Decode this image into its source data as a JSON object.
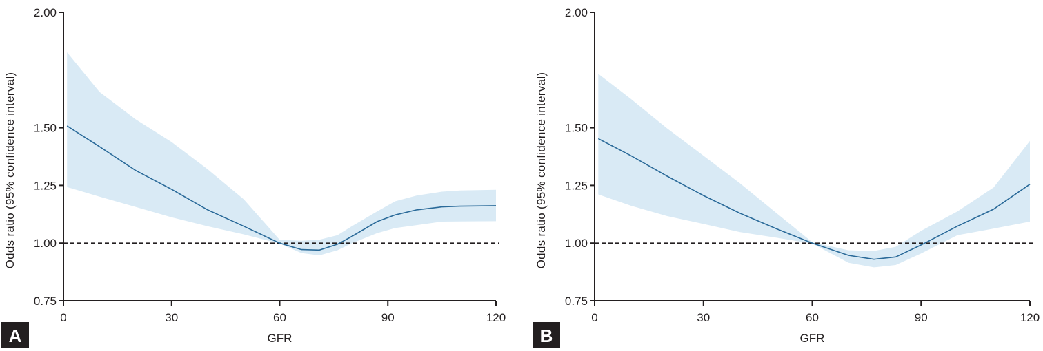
{
  "style": {
    "band_color": "#d9eaf5",
    "line_color": "#2a6a99",
    "reference_color": "#231f20"
  },
  "chart_data": [
    {
      "type": "area",
      "panel_label": "A",
      "xlabel": "GFR",
      "ylabel": "Odds ratio (95% confidence interval)",
      "xlim": [
        0,
        120
      ],
      "ylim": [
        0.75,
        2.0
      ],
      "xticks": [
        "0",
        "30",
        "60",
        "90",
        "120"
      ],
      "yticks": [
        "0.75",
        "1.00",
        "1.25",
        "1.50",
        "2.00"
      ],
      "reference_line": 1.0,
      "grid": false,
      "x": [
        1,
        10,
        20,
        30,
        40,
        50,
        60,
        66,
        71,
        76,
        80,
        87,
        92,
        98,
        105,
        110,
        120
      ],
      "estimate": [
        1.508,
        1.418,
        1.315,
        1.233,
        1.144,
        1.073,
        1.0,
        0.972,
        0.97,
        0.995,
        1.029,
        1.093,
        1.122,
        1.144,
        1.157,
        1.16,
        1.162
      ],
      "upper": [
        1.827,
        1.655,
        1.537,
        1.438,
        1.32,
        1.19,
        1.014,
        1.01,
        1.015,
        1.034,
        1.073,
        1.137,
        1.181,
        1.206,
        1.223,
        1.228,
        1.231
      ],
      "lower": [
        1.243,
        1.201,
        1.157,
        1.112,
        1.073,
        1.038,
        0.998,
        0.957,
        0.947,
        0.969,
        0.999,
        1.043,
        1.065,
        1.078,
        1.093,
        1.094,
        1.095
      ]
    },
    {
      "type": "area",
      "panel_label": "B",
      "xlabel": "GFR",
      "ylabel": "Odds ratio (95% confidence interval)",
      "xlim": [
        0,
        120
      ],
      "ylim": [
        0.75,
        2.0
      ],
      "xticks": [
        "0",
        "30",
        "60",
        "90",
        "120"
      ],
      "yticks": [
        "0.75",
        "1.00",
        "1.25",
        "1.50",
        "2.00"
      ],
      "reference_line": 1.0,
      "grid": false,
      "x": [
        1,
        10,
        20,
        30,
        40,
        50,
        60,
        70,
        77,
        83,
        90,
        100,
        110,
        120
      ],
      "estimate": [
        1.453,
        1.379,
        1.29,
        1.206,
        1.13,
        1.063,
        1.0,
        0.947,
        0.93,
        0.94,
        0.992,
        1.073,
        1.147,
        1.255
      ],
      "upper": [
        1.734,
        1.625,
        1.497,
        1.379,
        1.26,
        1.132,
        1.004,
        0.969,
        0.966,
        0.984,
        1.053,
        1.137,
        1.241,
        1.443
      ],
      "lower": [
        1.211,
        1.162,
        1.117,
        1.083,
        1.048,
        1.024,
        0.998,
        0.915,
        0.895,
        0.905,
        0.955,
        1.034,
        1.063,
        1.093
      ]
    }
  ]
}
